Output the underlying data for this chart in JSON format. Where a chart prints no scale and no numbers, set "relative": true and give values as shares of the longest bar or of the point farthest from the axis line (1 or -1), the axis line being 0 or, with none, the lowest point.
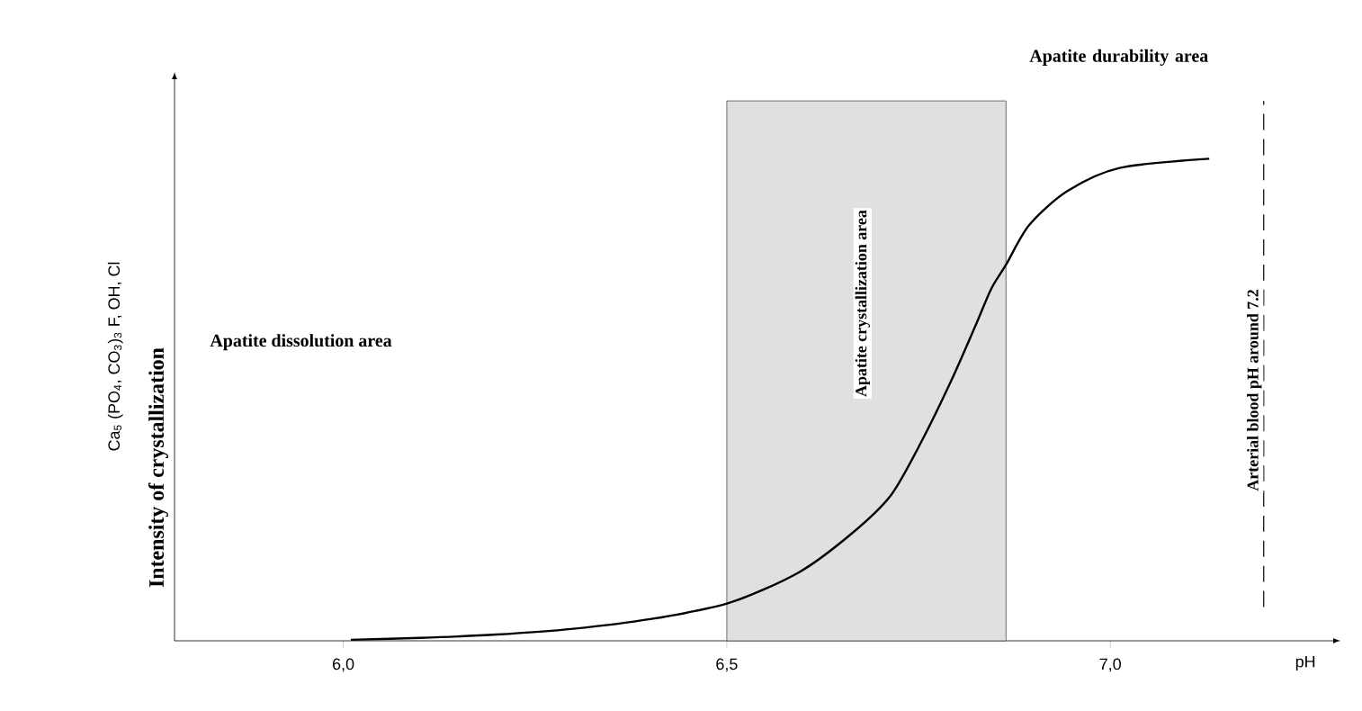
{
  "chart_data": {
    "type": "line",
    "xlabel": "pH",
    "ylabel": "Intensity of crystallization",
    "annotations": [
      "Apatite dissolution area",
      "Apatite durability area",
      "Ca$_{5}$ (PO$_{4}$, CO$_{3}$)$_{3}$ F, OH, Cl"
    ],
    "x": [
      6.01,
      6.1,
      6.2,
      6.3,
      6.4,
      6.502,
      6.594,
      6.664,
      6.714,
      6.754,
      6.793,
      6.824,
      6.845,
      6.864,
      6.894,
      6.944,
      7.012,
      7.129
    ],
    "series": [
      {
        "color": "#000000",
        "values": [
          0.002,
          0.006,
          0.013,
          0.025,
          0.045,
          0.078,
          0.142,
          0.224,
          0.302,
          0.414,
          0.541,
          0.653,
          0.731,
          0.78,
          0.862,
          0.933,
          0.981,
          1.0
        ]
      }
    ],
    "relative": true,
    "xlim": [
      5.78,
      7.3
    ],
    "xticks": [
      {
        "value": 6.0,
        "label": "6,0"
      },
      {
        "value": 6.5,
        "label": "6,5"
      },
      {
        "value": 7.0,
        "label": "7,0"
      }
    ],
    "bands": [
      {
        "axis": "x",
        "from": 6.5,
        "to": 6.864,
        "label": "Apatite crystallization area"
      }
    ],
    "ref_lines": [
      {
        "axis": "x",
        "value": 7.2,
        "label": "Arterial blood pH around 7.2",
        "line_style": "dashed"
      }
    ],
    "line_style": "solid"
  }
}
